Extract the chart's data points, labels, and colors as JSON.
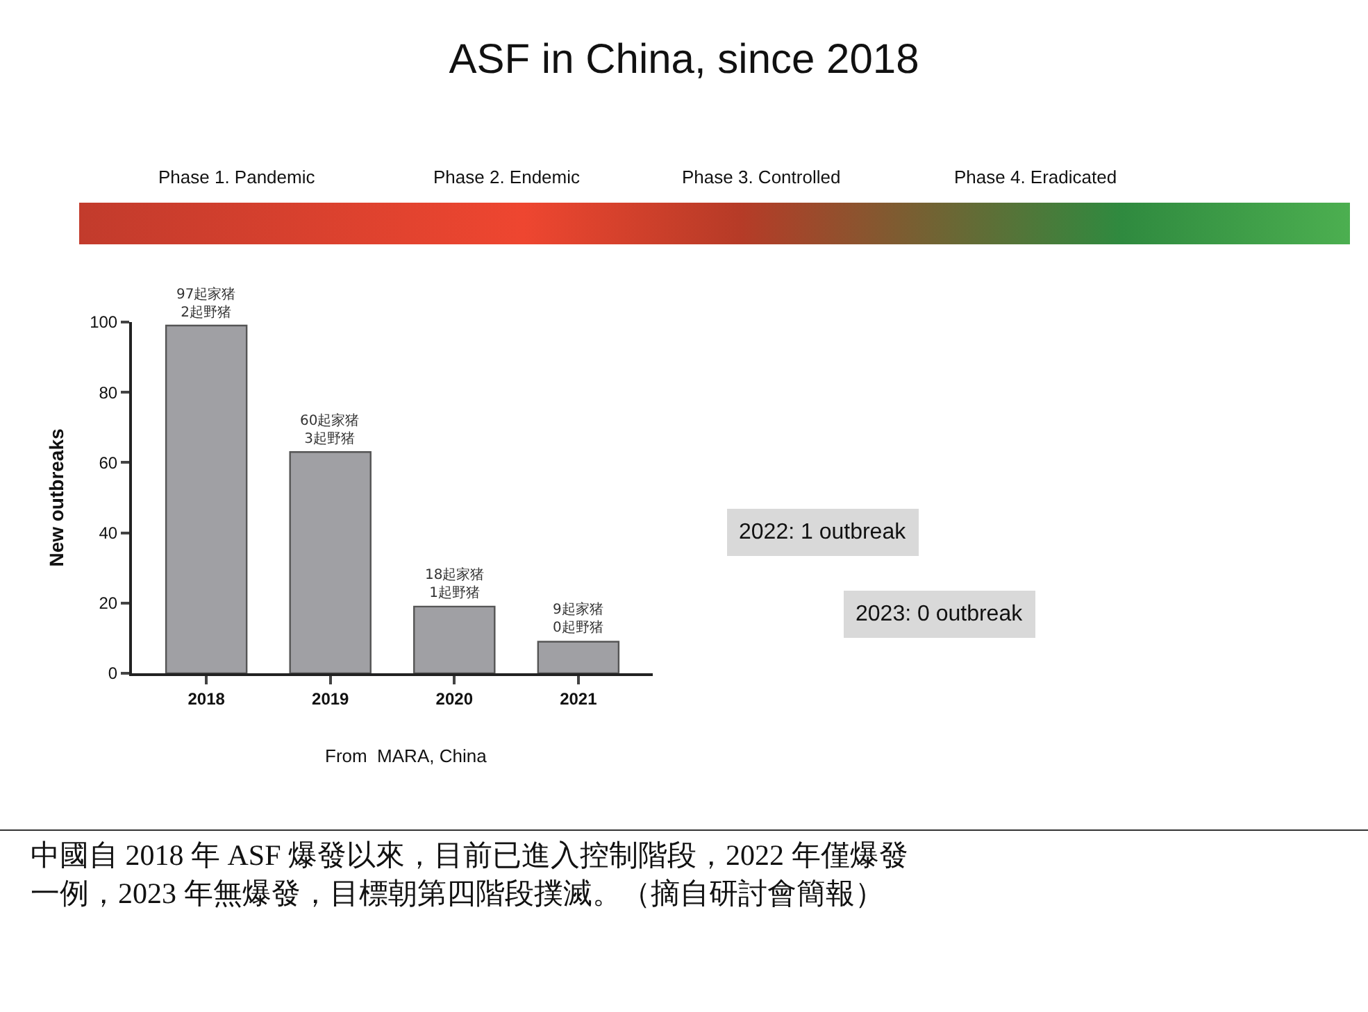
{
  "chart_data": {
    "type": "bar",
    "title": "ASF in China, since 2018",
    "categories": [
      "2018",
      "2019",
      "2020",
      "2021"
    ],
    "values": [
      99,
      63,
      19,
      9
    ],
    "color": "#a0a0a4",
    "ylabel": "New outbreaks",
    "ylim": [
      0,
      100
    ],
    "yticks": [
      0,
      20,
      40,
      60,
      80,
      100
    ],
    "annotations": [
      {
        "text": "97起家猪\n2起野猪",
        "x": "2018",
        "y": 99
      },
      {
        "text": "60起家猪\n3起野猪",
        "x": "2019",
        "y": 63
      },
      {
        "text": "18起家猪\n1起野猪",
        "x": "2020",
        "y": 19
      },
      {
        "text": "9起家猪\n0起野猪",
        "x": "2021",
        "y": 9
      },
      "Phase 1. Pandemic",
      "Phase 2. Endemic",
      "Phase 3. Controlled",
      "Phase 4. Eradicated",
      "2022: 1 outbreak",
      "2023: 0 outbreak",
      "From  MARA, China",
      "中國自 2018 年 ASF 爆發以來，目前已進入控制階段，2022 年僅爆發一例，2023 年無爆發，目標朝第四階段撲滅。（摘自研討會簡報）"
    ]
  }
}
